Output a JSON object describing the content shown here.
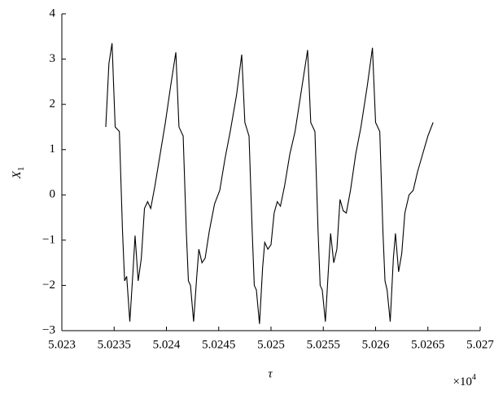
{
  "chart_data": {
    "type": "line",
    "x_label": "τ",
    "y_label": "X",
    "y_label_sub": "1",
    "x_multiplier": "×10",
    "x_multiplier_exp": "4",
    "xlim": [
      5.023,
      5.027
    ],
    "xticks": [
      5.023,
      5.0235,
      5.024,
      5.0245,
      5.025,
      5.0255,
      5.026,
      5.0265,
      5.027
    ],
    "ylim": [
      -3,
      4
    ],
    "yticks": [
      {
        "value": -3,
        "label": "−3"
      },
      {
        "value": -2,
        "label": "−2"
      },
      {
        "value": -1,
        "label": "−1"
      },
      0,
      1,
      2,
      3,
      4
    ],
    "grid": false,
    "series": [
      {
        "color": "#000000",
        "x": [
          5.02342,
          5.02345,
          5.02348,
          5.02351,
          5.02355,
          5.02358,
          5.0236,
          5.02362,
          5.02365,
          5.02368,
          5.0237,
          5.02373,
          5.02376,
          5.02379,
          5.02382,
          5.02385,
          5.02389,
          5.02394,
          5.02399,
          5.02404,
          5.02409,
          5.02412,
          5.02416,
          5.02419,
          5.02421,
          5.02423,
          5.02426,
          5.02429,
          5.02431,
          5.02434,
          5.02437,
          5.02441,
          5.02446,
          5.02451,
          5.02456,
          5.02461,
          5.02467,
          5.02472,
          5.02475,
          5.02479,
          5.02482,
          5.02484,
          5.02486,
          5.02489,
          5.02492,
          5.02494,
          5.02497,
          5.025,
          5.02503,
          5.02506,
          5.02509,
          5.02513,
          5.02518,
          5.02523,
          5.02529,
          5.02535,
          5.02538,
          5.02542,
          5.02545,
          5.02547,
          5.02549,
          5.02552,
          5.02555,
          5.02557,
          5.0256,
          5.02563,
          5.02566,
          5.02569,
          5.02572,
          5.02576,
          5.02581,
          5.02586,
          5.02592,
          5.02597,
          5.026,
          5.02604,
          5.02607,
          5.02609,
          5.02611,
          5.02614,
          5.02617,
          5.02619,
          5.02622,
          5.02625,
          5.02628,
          5.02632,
          5.02636,
          5.0264,
          5.02645,
          5.0265,
          5.02655
        ],
        "values": [
          1.5,
          2.9,
          3.35,
          1.5,
          1.4,
          -0.8,
          -1.9,
          -1.8,
          -2.8,
          -1.7,
          -0.9,
          -1.9,
          -1.4,
          -0.3,
          -0.15,
          -0.3,
          0.2,
          0.9,
          1.6,
          2.4,
          3.15,
          1.5,
          1.3,
          -0.8,
          -1.9,
          -2.0,
          -2.8,
          -1.8,
          -1.2,
          -1.5,
          -1.4,
          -0.8,
          -0.2,
          0.1,
          0.8,
          1.4,
          2.2,
          3.1,
          1.6,
          1.3,
          -0.8,
          -2.0,
          -2.1,
          -2.85,
          -1.6,
          -1.05,
          -1.2,
          -1.1,
          -0.4,
          -0.15,
          -0.25,
          0.2,
          0.9,
          1.4,
          2.3,
          3.2,
          1.6,
          1.4,
          -0.8,
          -2.0,
          -2.1,
          -2.8,
          -1.6,
          -0.85,
          -1.5,
          -1.2,
          -0.1,
          -0.35,
          -0.4,
          0.1,
          0.9,
          1.5,
          2.4,
          3.25,
          1.6,
          1.4,
          -0.8,
          -1.9,
          -2.1,
          -2.8,
          -1.4,
          -0.85,
          -1.7,
          -1.3,
          -0.4,
          0.0,
          0.1,
          0.5,
          0.9,
          1.3,
          1.6
        ]
      }
    ]
  }
}
